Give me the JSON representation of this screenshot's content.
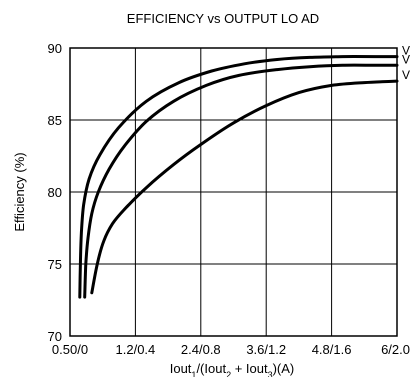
{
  "chart_data": {
    "type": "line",
    "title": "EFFICIENCY vs OUTPUT LO  AD",
    "xlabel_parts": [
      "Iout",
      "1",
      "/(Iout",
      "2",
      " + Iout",
      "3",
      ")(A)"
    ],
    "ylabel": "Efficiency (%)",
    "x_tick_labels": [
      "0.50/0",
      "1.2/0.4",
      "2.4/0.8",
      "3.6/1.2",
      "4.8/1.6",
      "6/2.0"
    ],
    "x_ticks": [
      0,
      1.2,
      2.4,
      3.6,
      4.8,
      6.0
    ],
    "y_ticks": [
      70,
      75,
      80,
      85,
      90
    ],
    "xlim": [
      0,
      6.0
    ],
    "ylim": [
      70,
      90
    ],
    "grid": true,
    "series": [
      {
        "name": "V",
        "x": [
          0.18,
          0.19,
          0.21,
          0.25,
          0.35,
          0.55,
          0.9,
          1.4,
          2.0,
          2.6,
          3.2,
          3.8,
          4.4,
          5.0,
          5.6,
          6.0
        ],
        "y": [
          72.7,
          75.0,
          77.2,
          79.1,
          80.9,
          82.6,
          84.5,
          86.3,
          87.6,
          88.4,
          88.9,
          89.2,
          89.35,
          89.4,
          89.4,
          89.4
        ]
      },
      {
        "name": "V",
        "x": [
          0.27,
          0.29,
          0.33,
          0.4,
          0.52,
          0.72,
          1.0,
          1.4,
          1.9,
          2.5,
          3.1,
          3.8,
          4.4,
          5.0,
          5.6,
          6.0
        ],
        "y": [
          72.7,
          75.0,
          76.8,
          78.5,
          80.0,
          81.6,
          83.2,
          84.9,
          86.3,
          87.4,
          88.1,
          88.5,
          88.7,
          88.8,
          88.8,
          88.8
        ]
      },
      {
        "name": "V",
        "x": [
          0.4,
          0.5,
          0.62,
          0.78,
          1.0,
          1.4,
          1.9,
          2.4,
          3.0,
          3.6,
          4.2,
          4.8,
          5.4,
          6.0
        ],
        "y": [
          73.0,
          75.0,
          76.6,
          77.8,
          78.8,
          80.3,
          81.9,
          83.3,
          84.8,
          86.0,
          86.9,
          87.4,
          87.6,
          87.7
        ]
      }
    ]
  }
}
